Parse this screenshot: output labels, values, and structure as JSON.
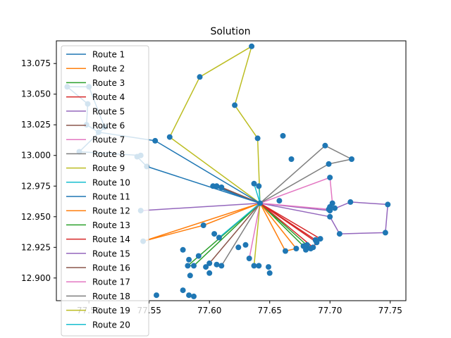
{
  "chart_data": {
    "type": "line",
    "title": "Solution",
    "xlabel": "",
    "ylabel": "",
    "xlim": [
      77.473,
      77.763
    ],
    "ylim": [
      12.8815,
      13.0935
    ],
    "xticks": [
      77.5,
      77.55,
      77.6,
      77.65,
      77.7,
      77.75
    ],
    "xtick_labels": [
      "77.50",
      "77.55",
      "77.60",
      "77.65",
      "77.70",
      "77.75"
    ],
    "yticks": [
      12.9,
      12.925,
      12.95,
      12.975,
      13.0,
      13.025,
      13.05,
      13.075
    ],
    "ytick_labels": [
      "12.900",
      "12.925",
      "12.950",
      "12.975",
      "13.000",
      "13.025",
      "13.050",
      "13.075"
    ],
    "grid": false,
    "legend_position": "upper-left",
    "marker_color": "#1f77b4",
    "depot": [
      77.642,
      12.961
    ],
    "series": [
      {
        "name": "Route 1",
        "color": "#1f77b4",
        "points": [
          [
            77.642,
            12.961
          ],
          [
            77.606,
            12.975
          ],
          [
            77.603,
            12.975
          ],
          [
            77.642,
            12.961
          ]
        ]
      },
      {
        "name": "Route 2",
        "color": "#ff7f0e",
        "points": [
          [
            77.642,
            12.961
          ],
          [
            77.595,
            12.943
          ],
          [
            77.545,
            12.93
          ],
          [
            77.642,
            12.961
          ]
        ]
      },
      {
        "name": "Route 3",
        "color": "#2ca02c",
        "points": [
          [
            77.642,
            12.961
          ],
          [
            77.582,
            12.91
          ],
          [
            77.587,
            12.91
          ],
          [
            77.642,
            12.961
          ]
        ]
      },
      {
        "name": "Route 4",
        "color": "#d62728",
        "points": [
          [
            77.642,
            12.961
          ],
          [
            77.688,
            12.931
          ],
          [
            77.692,
            12.932
          ],
          [
            77.642,
            12.961
          ]
        ]
      },
      {
        "name": "Route 5",
        "color": "#9467bd",
        "points": [
          [
            77.642,
            12.961
          ],
          [
            77.7,
            12.955
          ],
          [
            77.717,
            12.962
          ],
          [
            77.748,
            12.96
          ],
          [
            77.746,
            12.937
          ],
          [
            77.708,
            12.936
          ],
          [
            77.7,
            12.95
          ],
          [
            77.642,
            12.961
          ]
        ]
      },
      {
        "name": "Route 6",
        "color": "#8c564b",
        "points": [
          [
            77.642,
            12.961
          ],
          [
            77.61,
            12.974
          ],
          [
            77.642,
            12.961
          ]
        ]
      },
      {
        "name": "Route 7",
        "color": "#e377c2",
        "points": [
          [
            77.642,
            12.961
          ],
          [
            77.7,
            12.982
          ],
          [
            77.702,
            12.961
          ],
          [
            77.699,
            12.956
          ],
          [
            77.642,
            12.961
          ]
        ]
      },
      {
        "name": "Route 8",
        "color": "#7f7f7f",
        "points": [
          [
            77.642,
            12.961
          ],
          [
            77.696,
            13.008
          ],
          [
            77.718,
            12.997
          ],
          [
            77.699,
            12.993
          ],
          [
            77.642,
            12.961
          ]
        ]
      },
      {
        "name": "Route 9",
        "color": "#bcbd22",
        "points": [
          [
            77.642,
            12.961
          ],
          [
            77.64,
            13.014
          ],
          [
            77.621,
            13.041
          ],
          [
            77.635,
            13.089
          ],
          [
            77.592,
            13.064
          ],
          [
            77.567,
            13.015
          ],
          [
            77.642,
            12.961
          ]
        ]
      },
      {
        "name": "Route 10",
        "color": "#17becf",
        "points": [
          [
            77.642,
            12.961
          ],
          [
            77.637,
            12.977
          ],
          [
            77.641,
            12.975
          ],
          [
            77.642,
            12.961
          ]
        ]
      },
      {
        "name": "Route 11",
        "color": "#1f77b4",
        "points": [
          [
            77.642,
            12.961
          ],
          [
            77.548,
            12.991
          ],
          [
            77.54,
            12.999
          ],
          [
            77.543,
            13.0
          ],
          [
            77.492,
            13.003
          ],
          [
            77.513,
            13.023
          ],
          [
            77.5,
            13.056
          ],
          [
            77.482,
            13.056
          ],
          [
            77.499,
            13.042
          ],
          [
            77.498,
            13.025
          ],
          [
            77.508,
            13.019
          ],
          [
            77.555,
            13.012
          ],
          [
            77.642,
            12.961
          ]
        ]
      },
      {
        "name": "Route 12",
        "color": "#ff7f0e",
        "points": [
          [
            77.642,
            12.961
          ],
          [
            77.663,
            12.922
          ],
          [
            77.672,
            12.924
          ],
          [
            77.642,
            12.961
          ]
        ]
      },
      {
        "name": "Route 13",
        "color": "#2ca02c",
        "points": [
          [
            77.642,
            12.961
          ],
          [
            77.684,
            12.924
          ],
          [
            77.678,
            12.926
          ],
          [
            77.642,
            12.961
          ]
        ]
      },
      {
        "name": "Route 14",
        "color": "#d62728",
        "points": [
          [
            77.642,
            12.961
          ],
          [
            77.686,
            12.925
          ],
          [
            77.689,
            12.929
          ],
          [
            77.642,
            12.961
          ]
        ]
      },
      {
        "name": "Route 15",
        "color": "#9467bd",
        "points": [
          [
            77.642,
            12.961
          ],
          [
            77.543,
            12.955
          ],
          [
            77.642,
            12.961
          ]
        ]
      },
      {
        "name": "Route 16",
        "color": "#8c564b",
        "points": [
          [
            77.642,
            12.961
          ],
          [
            77.6,
            12.912
          ],
          [
            77.642,
            12.961
          ]
        ]
      },
      {
        "name": "Route 17",
        "color": "#e377c2",
        "points": [
          [
            77.642,
            12.961
          ],
          [
            77.633,
            12.916
          ],
          [
            77.642,
            12.961
          ]
        ]
      },
      {
        "name": "Route 18",
        "color": "#7f7f7f",
        "points": [
          [
            77.642,
            12.961
          ],
          [
            77.61,
            12.91
          ],
          [
            77.642,
            12.961
          ]
        ]
      },
      {
        "name": "Route 19",
        "color": "#bcbd22",
        "points": [
          [
            77.642,
            12.961
          ],
          [
            77.637,
            12.91
          ],
          [
            77.642,
            12.961
          ]
        ]
      },
      {
        "name": "Route 20",
        "color": "#17becf",
        "points": [
          [
            77.642,
            12.961
          ],
          [
            77.608,
            12.933
          ],
          [
            77.642,
            12.961
          ]
        ]
      }
    ],
    "extra_points": [
      [
        77.583,
        12.886
      ],
      [
        77.587,
        12.885
      ],
      [
        77.578,
        12.89
      ],
      [
        77.556,
        12.886
      ],
      [
        77.578,
        12.923
      ],
      [
        77.583,
        12.915
      ],
      [
        77.584,
        12.902
      ],
      [
        77.591,
        12.918
      ],
      [
        77.597,
        12.909
      ],
      [
        77.6,
        12.904
      ],
      [
        77.606,
        12.911
      ],
      [
        77.604,
        12.936
      ],
      [
        77.624,
        12.925
      ],
      [
        77.63,
        12.927
      ],
      [
        77.641,
        12.91
      ],
      [
        77.649,
        12.909
      ],
      [
        77.65,
        12.904
      ],
      [
        77.658,
        12.963
      ],
      [
        77.661,
        13.016
      ],
      [
        77.668,
        12.997
      ],
      [
        77.68,
        12.923
      ],
      [
        77.681,
        12.927
      ],
      [
        77.7,
        12.958
      ],
      [
        77.704,
        12.957
      ]
    ]
  }
}
